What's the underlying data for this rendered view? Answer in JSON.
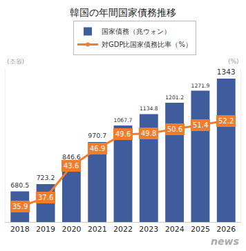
{
  "chart_data": {
    "type": "bar",
    "title": "韓国の年間国家債務推移",
    "categories": [
      "2018",
      "2019",
      "2020",
      "2021",
      "2022",
      "2023",
      "2024",
      "2025",
      "2026"
    ],
    "series": [
      {
        "name": "国家債務（兆ウォン）",
        "type": "bar",
        "color": "#3f5c9c",
        "values": [
          680.5,
          723.2,
          846.6,
          970.7,
          1067.7,
          1134.8,
          1201.2,
          1271.9,
          1343
        ]
      },
      {
        "name": "対GDP比国家債務比率（%）",
        "type": "line",
        "axis": "y2",
        "color": "#f07d2c",
        "marker": "circle",
        "values": [
          35.9,
          37.6,
          43.6,
          46.9,
          49.6,
          49.8,
          50.6,
          51.4,
          52.2
        ]
      }
    ],
    "ylabel": "(조원)",
    "y2label": "(%)",
    "ylim": [
      500,
      1400
    ],
    "y2lim": [
      33,
      62
    ],
    "tick_labels": "x",
    "grid": false,
    "legend": "top",
    "data_labels": true,
    "annotations": [
      "news"
    ]
  }
}
